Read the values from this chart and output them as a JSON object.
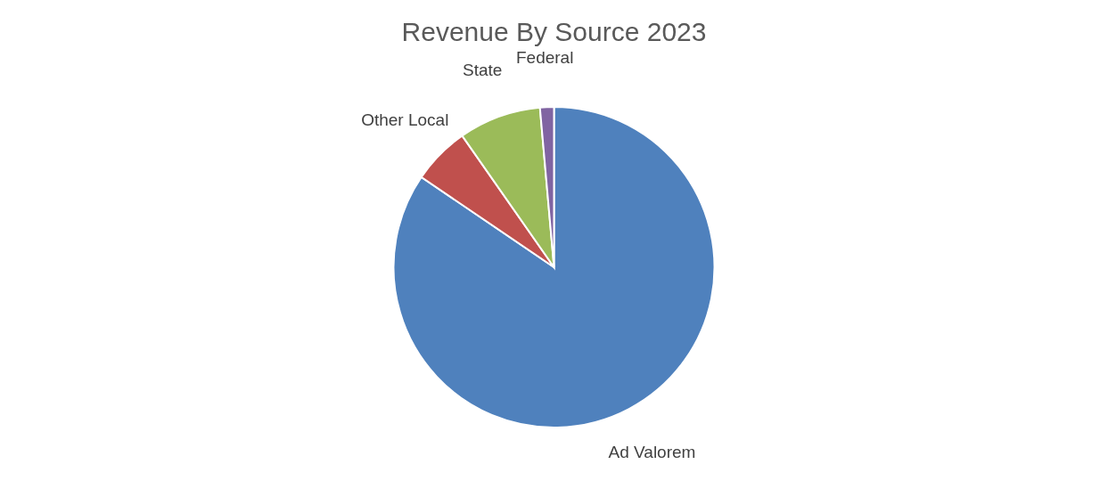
{
  "chart_data": {
    "type": "pie",
    "title": "Revenue By Source 2023",
    "categories": [
      "Ad Valorem",
      "Other Local",
      "State",
      "Federal"
    ],
    "values": [
      84.5,
      5.8,
      8.3,
      1.4
    ],
    "colors": [
      "#4f81bd",
      "#c0504d",
      "#9bbb59",
      "#8064a2"
    ]
  }
}
